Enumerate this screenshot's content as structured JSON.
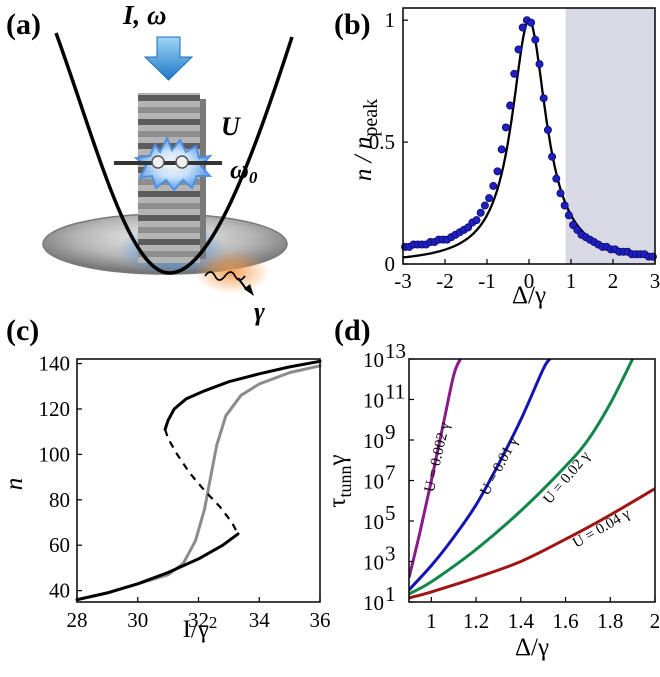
{
  "panel_labels": {
    "a": "(a)",
    "b": "(b)",
    "c": "(c)",
    "d": "(d)"
  },
  "schematic": {
    "drive_label": "I, ω",
    "interaction_label": "U",
    "frequency_label": "ω",
    "frequency_subscript": "0",
    "loss_label": "γ"
  },
  "colors": {
    "data_points": "#1f1fbf",
    "shaded_region": "#d9d9e6",
    "black": "#000000",
    "gray": "#8c8c8c",
    "purple": "#8b1a8b",
    "blue": "#1414b4",
    "green": "#12874a",
    "red": "#a01414",
    "arrow": "#1e90d8"
  },
  "chart_data": [
    {
      "panel": "b",
      "type": "scatter",
      "xlabel": "Δ/γ",
      "ylabel_main": "n / n",
      "ylabel_sub": "peak",
      "xlim": [
        -3,
        3
      ],
      "ylim": [
        0,
        1.05
      ],
      "xticks": [
        -3,
        -2,
        -1,
        0,
        1,
        2,
        3
      ],
      "xtick_labels": [
        "-3",
        "-2",
        "-1",
        "0",
        "1",
        "2",
        "3"
      ],
      "yticks": [
        0,
        0.5,
        1
      ],
      "ytick_labels": [
        "0",
        "0.5",
        "1"
      ],
      "shaded_region": [
        0.87,
        3
      ],
      "fit_line": {
        "function": "lorentzian",
        "center": 0,
        "hwhm": 0.5
      },
      "points": {
        "x": [
          -2.95,
          -2.85,
          -2.75,
          -2.65,
          -2.55,
          -2.45,
          -2.35,
          -2.25,
          -2.15,
          -2.05,
          -1.95,
          -1.85,
          -1.75,
          -1.65,
          -1.55,
          -1.45,
          -1.35,
          -1.25,
          -1.15,
          -1.05,
          -0.95,
          -0.85,
          -0.75,
          -0.65,
          -0.55,
          -0.45,
          -0.35,
          -0.25,
          -0.15,
          -0.05,
          0.05,
          0.15,
          0.25,
          0.35,
          0.45,
          0.55,
          0.65,
          0.75,
          0.85,
          0.95,
          1.05,
          1.15,
          1.25,
          1.35,
          1.45,
          1.55,
          1.65,
          1.75,
          1.85,
          1.95,
          2.05,
          2.15,
          2.25,
          2.35,
          2.45,
          2.55,
          2.65,
          2.75,
          2.85,
          2.95
        ],
        "y": [
          0.07,
          0.07,
          0.08,
          0.08,
          0.08,
          0.08,
          0.09,
          0.09,
          0.1,
          0.1,
          0.1,
          0.11,
          0.12,
          0.13,
          0.14,
          0.15,
          0.17,
          0.18,
          0.21,
          0.24,
          0.27,
          0.32,
          0.38,
          0.47,
          0.56,
          0.65,
          0.78,
          0.88,
          0.97,
          1.0,
          0.99,
          0.92,
          0.82,
          0.68,
          0.55,
          0.44,
          0.35,
          0.29,
          0.24,
          0.2,
          0.16,
          0.14,
          0.12,
          0.11,
          0.1,
          0.09,
          0.08,
          0.07,
          0.07,
          0.06,
          0.06,
          0.05,
          0.05,
          0.05,
          0.04,
          0.04,
          0.04,
          0.04,
          0.03,
          0.03
        ]
      }
    },
    {
      "panel": "c",
      "type": "line",
      "xlabel": "I/γ",
      "xlabel_sup": "2",
      "ylabel": "n",
      "xlim": [
        28,
        36
      ],
      "ylim": [
        35,
        142
      ],
      "xticks": [
        28,
        30,
        32,
        34,
        36
      ],
      "xtick_labels": [
        "28",
        "30",
        "32",
        "34",
        "36"
      ],
      "yticks": [
        40,
        60,
        80,
        100,
        120,
        140
      ],
      "ytick_labels": [
        "40",
        "60",
        "80",
        "100",
        "120",
        "140"
      ],
      "series": [
        {
          "style": "black-solid-upper",
          "x": [
            30.9,
            31.0,
            31.2,
            31.6,
            32.2,
            33.0,
            34.0,
            35.0,
            36.0
          ],
          "y": [
            111,
            115,
            120,
            124.5,
            128,
            132,
            135.5,
            138.5,
            141
          ]
        },
        {
          "style": "black-dashed",
          "x": [
            30.9,
            31.0,
            31.3,
            31.7,
            32.2,
            32.7,
            33.1,
            33.3
          ],
          "y": [
            111,
            107,
            100,
            92,
            84,
            77,
            70,
            65
          ]
        },
        {
          "style": "black-solid-lower",
          "x": [
            28.0,
            29.0,
            30.0,
            31.0,
            32.0,
            32.8,
            33.3
          ],
          "y": [
            36,
            39,
            43,
            48,
            54,
            60,
            65
          ]
        },
        {
          "style": "gray",
          "x": [
            28.0,
            29.0,
            30.0,
            31.0,
            31.5,
            31.9,
            32.2,
            32.4,
            32.6,
            32.9,
            33.4,
            34.0,
            35.0,
            36.0
          ],
          "y": [
            36,
            39,
            43,
            47,
            52,
            62,
            76,
            90,
            104,
            117,
            126,
            131,
            136,
            139
          ]
        }
      ]
    },
    {
      "panel": "d",
      "type": "line",
      "xlabel": "Δ/γ",
      "ylabel_main": "τ",
      "ylabel_sub": "tunn",
      "ylabel_tail": "γ",
      "yscale": "log",
      "xlim": [
        0.9,
        2.0
      ],
      "ylim": [
        1,
        13
      ],
      "xticks": [
        1,
        1.2,
        1.4,
        1.6,
        1.8,
        2
      ],
      "xtick_labels": [
        "1",
        "1.2",
        "1.4",
        "1.6",
        "1.8",
        "2"
      ],
      "ytick_exponents": [
        1,
        3,
        5,
        7,
        9,
        11,
        13
      ],
      "ytick_base": "10",
      "series": [
        {
          "name": "U = 0.002 γ",
          "color_key": "purple",
          "x": [
            0.9,
            0.95,
            1.0,
            1.05,
            1.1,
            1.13
          ],
          "log10_y": [
            2.2,
            4.5,
            7.0,
            9.6,
            12.2,
            13
          ]
        },
        {
          "name": "U = 0.01 γ",
          "color_key": "blue",
          "x": [
            0.9,
            1.0,
            1.1,
            1.2,
            1.3,
            1.4,
            1.5,
            1.53
          ],
          "log10_y": [
            1.6,
            2.8,
            4.2,
            5.8,
            7.8,
            10.0,
            12.5,
            13
          ]
        },
        {
          "name": "U = 0.02 γ",
          "color_key": "green",
          "x": [
            0.9,
            1.0,
            1.2,
            1.4,
            1.6,
            1.7,
            1.8,
            1.9
          ],
          "log10_y": [
            1.4,
            2.0,
            3.6,
            5.5,
            7.7,
            9.0,
            10.8,
            13
          ]
        },
        {
          "name": "U = 0.04 γ",
          "color_key": "red",
          "x": [
            0.9,
            1.0,
            1.2,
            1.4,
            1.6,
            1.8,
            2.0
          ],
          "log10_y": [
            1.2,
            1.5,
            2.2,
            3.0,
            4.1,
            5.3,
            6.6
          ]
        }
      ]
    }
  ]
}
